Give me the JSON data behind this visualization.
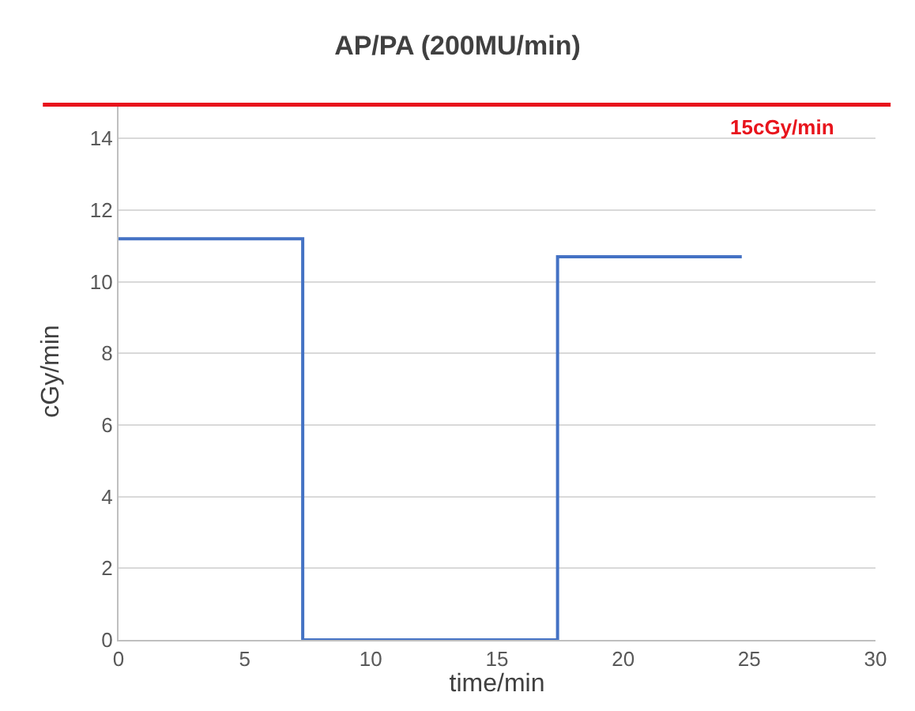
{
  "chart_data": {
    "type": "step",
    "title": "AP/PA (200MU/min)",
    "xlabel": "time/min",
    "ylabel": "cGy/min",
    "x": [
      0,
      7.3,
      17.4,
      24.7
    ],
    "series": [
      {
        "color": "#4472c4",
        "values": [
          11.2,
          0,
          10.7,
          10.7
        ]
      }
    ],
    "xlim": [
      0,
      30
    ],
    "xticks": [
      0,
      5,
      10,
      15,
      20,
      25,
      30
    ],
    "ylim": [
      0,
      15
    ],
    "yticks": [
      0,
      2,
      4,
      6,
      8,
      10,
      12,
      14
    ],
    "ref_lines": [
      {
        "axis": "y",
        "value": 15,
        "label": "15cGy/min",
        "color": "#e8141c"
      }
    ],
    "grid": "y"
  }
}
